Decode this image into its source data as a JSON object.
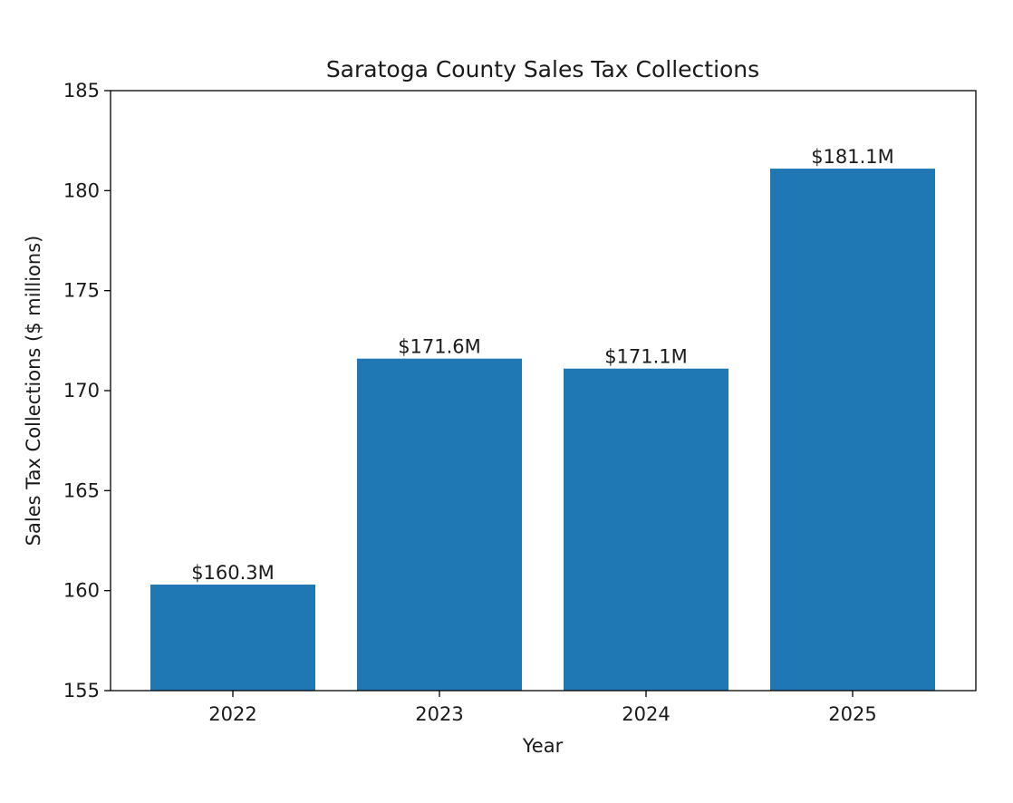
{
  "chart_data": {
    "type": "bar",
    "title": "Saratoga County Sales Tax Collections",
    "xlabel": "Year",
    "ylabel": "Sales Tax Collections ($ millions)",
    "categories": [
      "2022",
      "2023",
      "2024",
      "2025"
    ],
    "values": [
      160.3,
      171.6,
      171.1,
      181.1
    ],
    "data_labels": [
      "$160.3M",
      "$171.6M",
      "$171.1M",
      "$181.1M"
    ],
    "ylim": [
      155,
      185
    ],
    "yticks": [
      155,
      160,
      165,
      170,
      175,
      180,
      185
    ],
    "grid": false,
    "legend": "none",
    "bar_color": "#1f77b4"
  }
}
